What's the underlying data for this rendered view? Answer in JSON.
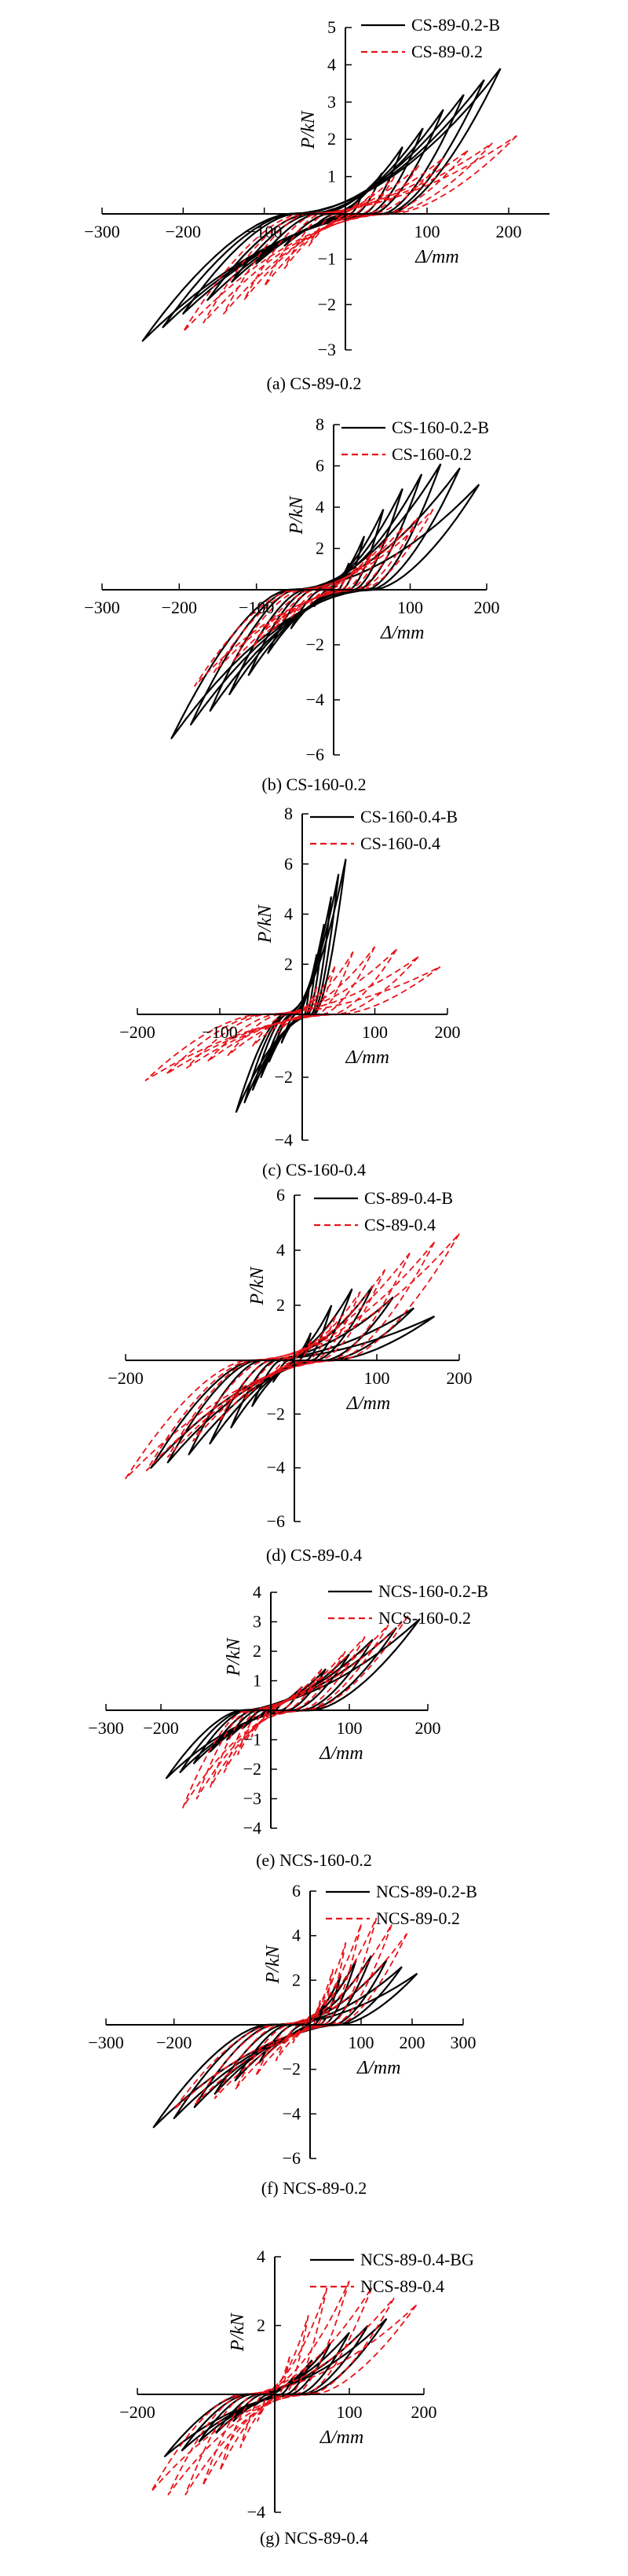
{
  "colors": {
    "black_series": "#000000",
    "red_series": "#e8141b",
    "axis": "#000000"
  },
  "chart_data": [
    {
      "type": "line",
      "caption": "(a) CS-89-0.2",
      "xlabel": "Δ/mm",
      "ylabel": "P/kN",
      "xlim": [
        -300,
        250
      ],
      "ylim": [
        -3,
        5
      ],
      "x_ticks": [
        "−300",
        "−200",
        "−100",
        "100",
        "200"
      ],
      "y_ticks": [
        "−3",
        "−2",
        "−1",
        "1",
        "2",
        "3",
        "4",
        "5"
      ],
      "legend_position": "top-right",
      "series": [
        {
          "name": "CS-89-0.2-B",
          "color": "#000000",
          "style": "solid",
          "cycles": [
            [
              190,
              3.9,
              -250,
              -2.8
            ],
            [
              170,
              3.6,
              -225,
              -2.5
            ],
            [
              145,
              3.2,
              -200,
              -2.2
            ],
            [
              120,
              2.8,
              -170,
              -1.9
            ],
            [
              95,
              2.3,
              -140,
              -1.5
            ],
            [
              70,
              1.8,
              -110,
              -1.1
            ],
            [
              45,
              1.1,
              -75,
              -0.7
            ],
            [
              20,
              0.5,
              -40,
              -0.3
            ]
          ]
        },
        {
          "name": "CS-89-0.2",
          "color": "#e8141b",
          "style": "dashed",
          "cycles": [
            [
              210,
              2.1,
              -200,
              -2.6
            ],
            [
              180,
              1.9,
              -175,
              -2.4
            ],
            [
              150,
              1.7,
              -150,
              -2.2
            ],
            [
              120,
              1.5,
              -125,
              -1.9
            ],
            [
              90,
              1.3,
              -100,
              -1.6
            ],
            [
              60,
              1.0,
              -75,
              -1.2
            ],
            [
              35,
              0.6,
              -45,
              -0.7
            ],
            [
              15,
              0.3,
              -20,
              -0.3
            ]
          ]
        }
      ]
    },
    {
      "type": "line",
      "caption": "(b) CS-160-0.2",
      "xlabel": "Δ/mm",
      "ylabel": "P/kN",
      "xlim": [
        -300,
        200
      ],
      "ylim": [
        -6,
        8
      ],
      "x_ticks": [
        "−300",
        "−200",
        "−100",
        "100",
        "200"
      ],
      "y_ticks": [
        "−6",
        "−4",
        "−2",
        "2",
        "4",
        "6",
        "8"
      ],
      "legend_position": "top-right",
      "series": [
        {
          "name": "CS-160-0.2-B",
          "color": "#000000",
          "style": "solid",
          "cycles": [
            [
              190,
              5.1,
              -210,
              -5.4
            ],
            [
              165,
              5.9,
              -185,
              -4.9
            ],
            [
              140,
              6.1,
              -160,
              -4.4
            ],
            [
              115,
              5.6,
              -135,
              -3.8
            ],
            [
              90,
              4.9,
              -110,
              -3.1
            ],
            [
              65,
              3.9,
              -85,
              -2.3
            ],
            [
              40,
              2.6,
              -55,
              -1.4
            ],
            [
              20,
              1.3,
              -25,
              -0.6
            ]
          ]
        },
        {
          "name": "CS-160-0.2",
          "color": "#e8141b",
          "style": "dashed",
          "cycles": [
            [
              130,
              3.9,
              -180,
              -3.5
            ],
            [
              110,
              3.5,
              -155,
              -3.0
            ],
            [
              90,
              3.0,
              -130,
              -2.6
            ],
            [
              70,
              2.5,
              -105,
              -2.1
            ],
            [
              50,
              1.8,
              -80,
              -1.5
            ],
            [
              30,
              1.1,
              -55,
              -1.0
            ],
            [
              15,
              0.5,
              -30,
              -0.5
            ]
          ]
        }
      ]
    },
    {
      "type": "line",
      "caption": "(c) CS-160-0.4",
      "xlabel": "Δ/mm",
      "ylabel": "P/kN",
      "xlim": [
        -200,
        200
      ],
      "ylim": [
        -4,
        8
      ],
      "x_ticks": [
        "−200",
        "−100",
        "100",
        "200"
      ],
      "y_ticks": [
        "−4",
        "−2",
        "2",
        "4",
        "6",
        "8"
      ],
      "legend_position": "top-right",
      "series": [
        {
          "name": "CS-160-0.4-B",
          "color": "#000000",
          "style": "solid",
          "cycles": [
            [
              60,
              6.2,
              -80,
              -3.1
            ],
            [
              50,
              5.6,
              -70,
              -2.8
            ],
            [
              40,
              4.7,
              -60,
              -2.4
            ],
            [
              30,
              3.6,
              -50,
              -2.0
            ],
            [
              20,
              2.4,
              -40,
              -1.5
            ],
            [
              10,
              1.2,
              -25,
              -0.9
            ]
          ]
        },
        {
          "name": "CS-160-0.4",
          "color": "#e8141b",
          "style": "dashed",
          "cycles": [
            [
              190,
              1.9,
              -190,
              -2.1
            ],
            [
              160,
              2.3,
              -165,
              -1.9
            ],
            [
              130,
              2.6,
              -140,
              -1.7
            ],
            [
              100,
              2.7,
              -115,
              -1.5
            ],
            [
              70,
              2.5,
              -90,
              -1.3
            ],
            [
              45,
              1.9,
              -60,
              -1.0
            ],
            [
              20,
              1.1,
              -30,
              -0.6
            ]
          ]
        }
      ]
    },
    {
      "type": "line",
      "caption": "(d) CS-89-0.4",
      "xlabel": "Δ/mm",
      "ylabel": "P/kN",
      "xlim": [
        -200,
        200
      ],
      "ylim": [
        -6,
        6
      ],
      "x_ticks": [
        "−200",
        "100",
        "200"
      ],
      "y_ticks": [
        "−6",
        "−4",
        "−2",
        "2",
        "4",
        "6"
      ],
      "legend_position": "top-right",
      "series": [
        {
          "name": "CS-89-0.4-B",
          "color": "#000000",
          "style": "solid",
          "cycles": [
            [
              170,
              1.6,
              -170,
              -4.0
            ],
            [
              145,
              1.9,
              -150,
              -3.8
            ],
            [
              120,
              2.3,
              -125,
              -3.5
            ],
            [
              95,
              2.7,
              -100,
              -3.1
            ],
            [
              70,
              2.6,
              -75,
              -2.5
            ],
            [
              45,
              2.0,
              -50,
              -1.7
            ],
            [
              20,
              1.0,
              -25,
              -0.8
            ]
          ]
        },
        {
          "name": "CS-89-0.4",
          "color": "#e8141b",
          "style": "dashed",
          "cycles": [
            [
              200,
              4.6,
              -200,
              -4.4
            ],
            [
              170,
              4.3,
              -175,
              -4.1
            ],
            [
              140,
              3.9,
              -150,
              -3.6
            ],
            [
              110,
              3.3,
              -120,
              -3.0
            ],
            [
              80,
              2.5,
              -90,
              -2.3
            ],
            [
              50,
              1.6,
              -60,
              -1.5
            ],
            [
              20,
              0.7,
              -30,
              -0.7
            ]
          ]
        }
      ]
    },
    {
      "type": "line",
      "caption": "(e) NCS-160-0.2",
      "xlabel": "Δ/mm",
      "ylabel": "P/kN",
      "xlim": [
        -300,
        200
      ],
      "ylim": [
        -4,
        4
      ],
      "x_ticks": [
        "−300",
        "−200",
        "100",
        "200"
      ],
      "y_ticks": [
        "−4",
        "−3",
        "−2",
        "−1",
        "1",
        "2",
        "3",
        "4"
      ],
      "legend_position": "top-right",
      "series": [
        {
          "name": "NCS-160-0.2-B",
          "color": "#000000",
          "style": "solid",
          "cycles": [
            [
              190,
              3.1,
              -190,
              -2.3
            ],
            [
              160,
              2.8,
              -165,
              -2.1
            ],
            [
              130,
              2.4,
              -140,
              -1.8
            ],
            [
              100,
              1.9,
              -110,
              -1.4
            ],
            [
              70,
              1.4,
              -80,
              -1.0
            ],
            [
              40,
              0.8,
              -50,
              -0.6
            ],
            [
              15,
              0.3,
              -20,
              -0.2
            ]
          ]
        },
        {
          "name": "NCS-160-0.2",
          "color": "#e8141b",
          "style": "dashed",
          "cycles": [
            [
              175,
              3.2,
              -160,
              -3.3
            ],
            [
              150,
              2.9,
              -135,
              -3.0
            ],
            [
              120,
              2.5,
              -110,
              -2.6
            ],
            [
              95,
              2.0,
              -85,
              -2.1
            ],
            [
              65,
              1.4,
              -60,
              -1.5
            ],
            [
              40,
              0.8,
              -35,
              -0.9
            ],
            [
              15,
              0.3,
              -15,
              -0.3
            ]
          ]
        }
      ]
    },
    {
      "type": "line",
      "caption": "(f) NCS-89-0.2",
      "xlabel": "Δ/mm",
      "ylabel": "P/kN",
      "xlim": [
        -300,
        300
      ],
      "ylim": [
        -6,
        6
      ],
      "x_ticks": [
        "−300",
        "−200",
        "100",
        "200",
        "300"
      ],
      "y_ticks": [
        "−6",
        "−4",
        "−2",
        "2",
        "4",
        "6"
      ],
      "legend_position": "top-right",
      "series": [
        {
          "name": "NCS-89-0.2-B",
          "color": "#000000",
          "style": "solid",
          "cycles": [
            [
              210,
              2.3,
              -230,
              -4.6
            ],
            [
              180,
              2.6,
              -200,
              -4.2
            ],
            [
              150,
              2.9,
              -170,
              -3.7
            ],
            [
              120,
              3.1,
              -140,
              -3.1
            ],
            [
              90,
              2.9,
              -110,
              -2.5
            ],
            [
              60,
              2.2,
              -75,
              -1.7
            ],
            [
              30,
              1.1,
              -40,
              -0.8
            ]
          ]
        },
        {
          "name": "NCS-89-0.2",
          "color": "#e8141b",
          "style": "dashed",
          "cycles": [
            [
              190,
              4.1,
              -200,
              -3.8
            ],
            [
              160,
              4.5,
              -170,
              -3.6
            ],
            [
              130,
              4.8,
              -140,
              -3.3
            ],
            [
              100,
              4.5,
              -110,
              -2.9
            ],
            [
              70,
              3.7,
              -80,
              -2.3
            ],
            [
              45,
              2.5,
              -50,
              -1.6
            ],
            [
              20,
              1.1,
              -25,
              -0.8
            ]
          ]
        }
      ]
    },
    {
      "type": "line",
      "caption": "(g) NCS-89-0.4",
      "xlabel": "Δ/mm",
      "ylabel": "P/kN",
      "xlim": [
        -200,
        200
      ],
      "ylim": [
        -4,
        4
      ],
      "x_ticks": [
        "−200",
        "100",
        "200"
      ],
      "y_ticks": [
        "−4",
        "2",
        "4"
      ],
      "legend_position": "top-right",
      "series": [
        {
          "name": "NCS-89-0.4-BG",
          "color": "#000000",
          "style": "solid",
          "cycles": [
            [
              150,
              2.2,
              -160,
              -2.1
            ],
            [
              125,
              2.0,
              -135,
              -1.9
            ],
            [
              100,
              1.8,
              -110,
              -1.6
            ],
            [
              75,
              1.5,
              -85,
              -1.3
            ],
            [
              50,
              1.0,
              -60,
              -0.9
            ],
            [
              25,
              0.5,
              -30,
              -0.4
            ]
          ]
        },
        {
          "name": "NCS-89-0.4",
          "color": "#e8141b",
          "style": "dashed",
          "cycles": [
            [
              190,
              2.6,
              -180,
              -3.3
            ],
            [
              160,
              2.8,
              -155,
              -3.4
            ],
            [
              130,
              3.1,
              -130,
              -3.4
            ],
            [
              100,
              3.3,
              -105,
              -3.1
            ],
            [
              70,
              3.1,
              -80,
              -2.6
            ],
            [
              45,
              2.3,
              -50,
              -1.8
            ],
            [
              20,
              1.1,
              -25,
              -0.9
            ]
          ]
        }
      ]
    }
  ]
}
